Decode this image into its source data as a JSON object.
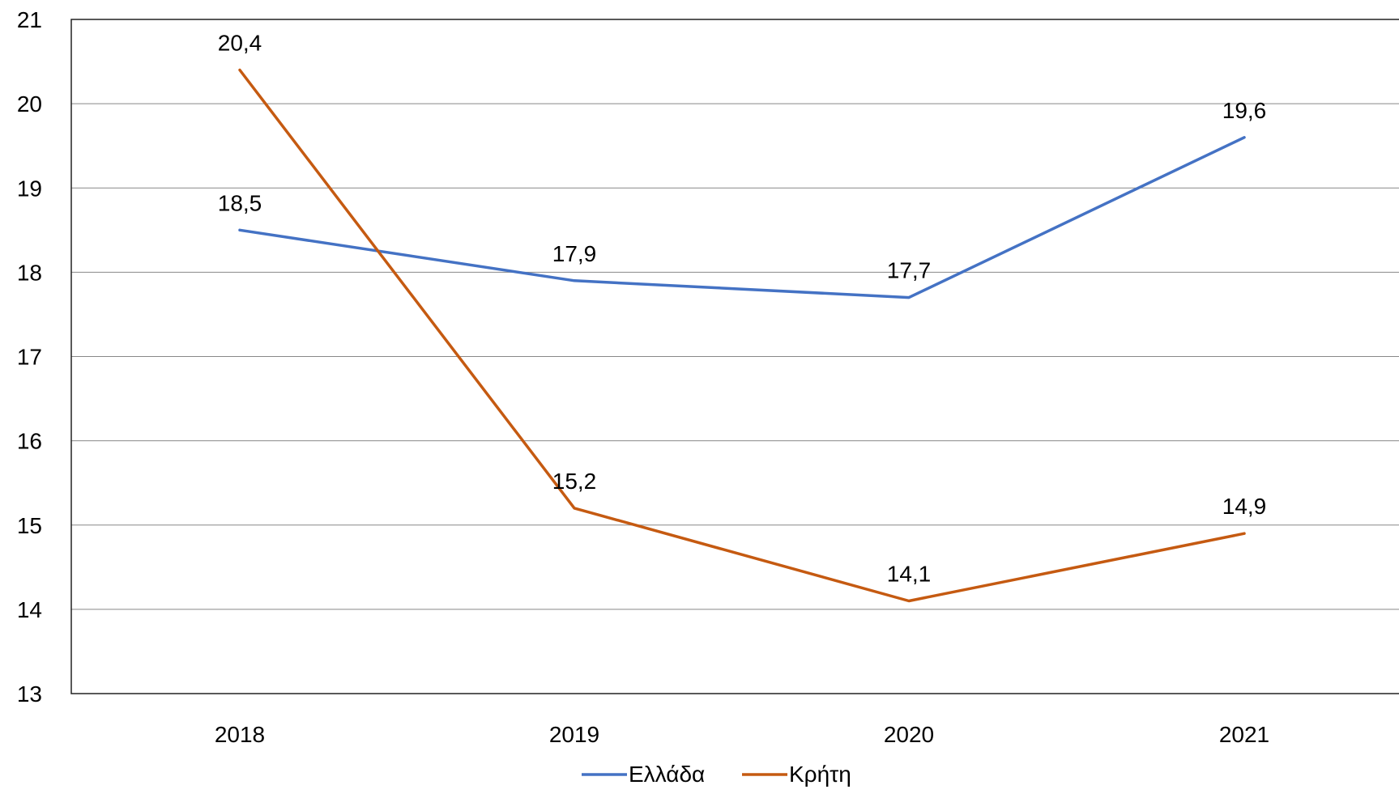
{
  "chart_data": {
    "type": "line",
    "categories": [
      "2018",
      "2019",
      "2020",
      "2021"
    ],
    "series": [
      {
        "name": "Ελλάδα",
        "values": [
          18.5,
          17.9,
          17.7,
          19.6
        ],
        "labels": [
          "18,5",
          "17,9",
          "17,7",
          "19,6"
        ],
        "color": "#4472C4"
      },
      {
        "name": "Κρήτη",
        "values": [
          20.4,
          15.2,
          14.1,
          14.9
        ],
        "labels": [
          "20,4",
          "15,2",
          "14,1",
          "14,9"
        ],
        "color": "#C55A11"
      }
    ],
    "ylim": [
      13,
      21
    ],
    "yticks": [
      "13",
      "14",
      "15",
      "16",
      "17",
      "18",
      "19",
      "20",
      "21"
    ],
    "grid": true,
    "legend_position": "bottom-center",
    "title": "",
    "xlabel": "",
    "ylabel": ""
  }
}
